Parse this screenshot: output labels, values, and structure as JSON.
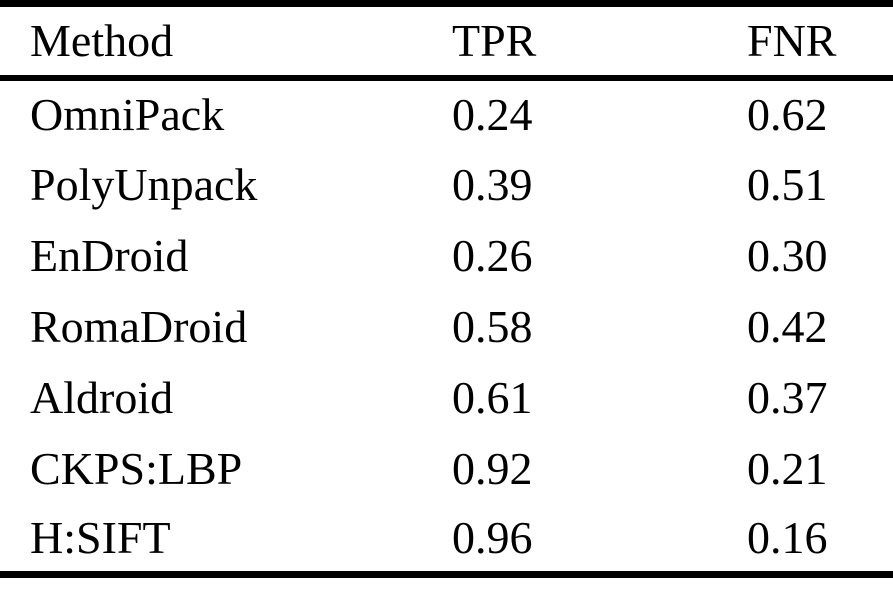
{
  "chart_data": {
    "type": "table",
    "title": "",
    "columns": [
      "Method",
      "TPR",
      "FNR"
    ],
    "rows": [
      [
        "OmniPack",
        "0.24",
        "0.62"
      ],
      [
        "PolyUnpack",
        "0.39",
        "0.51"
      ],
      [
        "EnDroid",
        "0.26",
        "0.30"
      ],
      [
        "RomaDroid",
        "0.58",
        "0.42"
      ],
      [
        "Aldroid",
        "0.61",
        "0.37"
      ],
      [
        "CKPS:LBP",
        "0.92",
        "0.21"
      ],
      [
        "H:SIFT",
        "0.96",
        "0.16"
      ]
    ],
    "text_color": "#000000",
    "background_color": "#ffffff",
    "rule_color": "#000000"
  }
}
